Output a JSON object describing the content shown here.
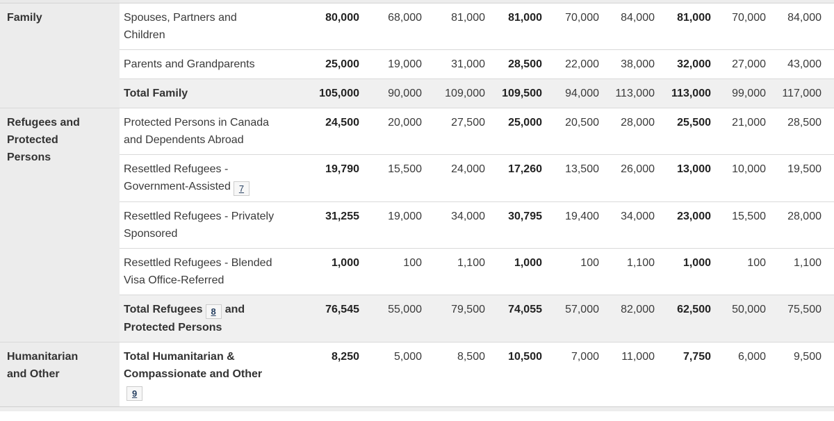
{
  "colors": {
    "category_cell_bg": "#ececec",
    "total_row_bg": "#f0f0f0",
    "row_border": "#d9d9d9",
    "partial_row_bg": "#ededed",
    "partial_row_left_bg": "#e9e9e9",
    "text": "#3a3a3a",
    "bold_text": "#222222",
    "footnote_link_color": "#284162",
    "footnote_box_bg": "#f7f7f7",
    "footnote_box_border": "#cccccc"
  },
  "table": {
    "bold_value_columns": [
      0,
      3,
      6
    ],
    "footnote_links": [
      "7",
      "8",
      "9"
    ],
    "groups": [
      {
        "category_parts": [
          {
            "t": "Family"
          }
        ],
        "rows": [
          {
            "label_parts": [
              {
                "t": "Spouses, Partners and"
              },
              {
                "br": true
              },
              {
                "t": "Children"
              }
            ],
            "shaded": false,
            "bold_label": false,
            "values": [
              "80,000",
              "68,000",
              "81,000",
              "81,000",
              "70,000",
              "84,000",
              "81,000",
              "70,000",
              "84,000"
            ]
          },
          {
            "label_parts": [
              {
                "t": "Parents and Grandparents"
              }
            ],
            "shaded": false,
            "bold_label": false,
            "values": [
              "25,000",
              "19,000",
              "31,000",
              "28,500",
              "22,000",
              "38,000",
              "32,000",
              "27,000",
              "43,000"
            ]
          },
          {
            "label_parts": [
              {
                "t": "Total Family"
              }
            ],
            "shaded": true,
            "bold_label": true,
            "values": [
              "105,000",
              "90,000",
              "109,000",
              "109,500",
              "94,000",
              "113,000",
              "113,000",
              "99,000",
              "117,000"
            ]
          }
        ]
      },
      {
        "category_parts": [
          {
            "t": "Refugees and"
          },
          {
            "br": true
          },
          {
            "t": "Protected"
          },
          {
            "br": true
          },
          {
            "t": "Persons"
          }
        ],
        "rows": [
          {
            "label_parts": [
              {
                "t": "Protected Persons in Canada"
              },
              {
                "br": true
              },
              {
                "t": "and Dependents Abroad"
              }
            ],
            "shaded": false,
            "bold_label": false,
            "values": [
              "24,500",
              "20,000",
              "27,500",
              "25,000",
              "20,500",
              "28,000",
              "25,500",
              "21,000",
              "28,500"
            ]
          },
          {
            "label_parts": [
              {
                "t": "Resettled Refugees -"
              },
              {
                "br": true
              },
              {
                "t": "Government-Assisted"
              },
              {
                "fn": "7"
              }
            ],
            "shaded": false,
            "bold_label": false,
            "values": [
              "19,790",
              "15,500",
              "24,000",
              "17,260",
              "13,500",
              "26,000",
              "13,000",
              "10,000",
              "19,500"
            ]
          },
          {
            "label_parts": [
              {
                "t": "Resettled Refugees - Privately"
              },
              {
                "br": true
              },
              {
                "t": "Sponsored"
              }
            ],
            "shaded": false,
            "bold_label": false,
            "values": [
              "31,255",
              "19,000",
              "34,000",
              "30,795",
              "19,400",
              "34,000",
              "23,000",
              "15,500",
              "28,000"
            ]
          },
          {
            "label_parts": [
              {
                "t": "Resettled Refugees - Blended"
              },
              {
                "br": true
              },
              {
                "t": "Visa Office-Referred"
              }
            ],
            "shaded": false,
            "bold_label": false,
            "values": [
              "1,000",
              "100",
              "1,100",
              "1,000",
              "100",
              "1,100",
              "1,000",
              "100",
              "1,100"
            ]
          },
          {
            "label_parts": [
              {
                "t": "Total Refugees"
              },
              {
                "fn": "8"
              },
              {
                "t": "and"
              },
              {
                "br": true
              },
              {
                "t": "Protected Persons"
              }
            ],
            "shaded": true,
            "bold_label": true,
            "values": [
              "76,545",
              "55,000",
              "79,500",
              "74,055",
              "57,000",
              "82,000",
              "62,500",
              "50,000",
              "75,500"
            ]
          }
        ]
      },
      {
        "category_parts": [
          {
            "t": "Humanitarian"
          },
          {
            "br": true
          },
          {
            "t": "and Other"
          }
        ],
        "rows": [
          {
            "label_parts": [
              {
                "t": "Total Humanitarian &"
              },
              {
                "br": true
              },
              {
                "t": "Compassionate and Other"
              },
              {
                "br": true
              },
              {
                "fn": "9"
              }
            ],
            "shaded": false,
            "bold_label": true,
            "values": [
              "8,250",
              "5,000",
              "8,500",
              "10,500",
              "7,000",
              "11,000",
              "7,750",
              "6,000",
              "9,500"
            ]
          }
        ]
      }
    ]
  }
}
